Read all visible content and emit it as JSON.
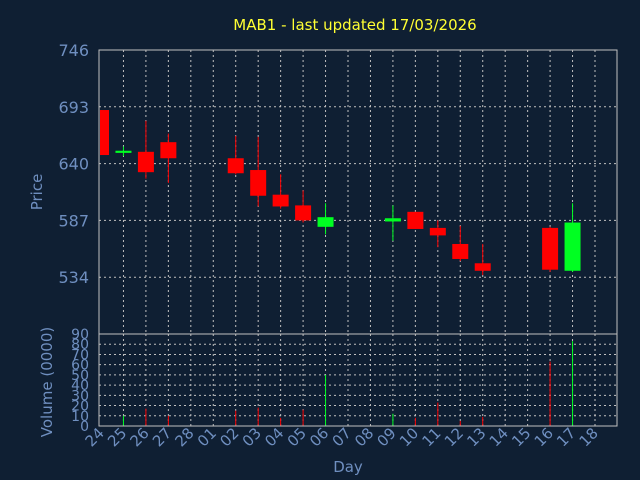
{
  "colors": {
    "background": "#0f1f33",
    "title": "#ffff33",
    "axis_text": "#6f8fc0",
    "grid": "#c0c0c0",
    "up": "#00ff22",
    "down": "#ff0000"
  },
  "chart_data": {
    "type": "candlestick",
    "title": "MAB1 - last updated 17/03/2026",
    "price_panel": {
      "ylabel": "Price",
      "yticks": [
        "746",
        "693",
        "640",
        "587",
        "534"
      ],
      "ylim": [
        481,
        746
      ],
      "grid": true
    },
    "volume_panel": {
      "ylabel": "Volume (0000)",
      "yticks": [
        "0",
        "10",
        "20",
        "30",
        "40",
        "50",
        "60",
        "70",
        "80",
        "90"
      ],
      "ylim": [
        0,
        90
      ],
      "grid": true
    },
    "xlabel": "Day",
    "x_ticks": [
      "24",
      "25",
      "26",
      "27",
      "28",
      "01",
      "02",
      "03",
      "04",
      "05",
      "06",
      "07",
      "08",
      "09",
      "10",
      "11",
      "12",
      "13",
      "14",
      "15",
      "16",
      "17",
      "18"
    ],
    "candles": [
      {
        "day": "24",
        "open": 690,
        "close": 648,
        "high": 690,
        "low": 648,
        "volume": 0
      },
      {
        "day": "25",
        "open": 650,
        "close": 652,
        "high": 656,
        "low": 647,
        "volume": 10
      },
      {
        "day": "26",
        "open": 651,
        "close": 632,
        "high": 680,
        "low": 626,
        "volume": 17
      },
      {
        "day": "27",
        "open": 660,
        "close": 645,
        "high": 668,
        "low": 622,
        "volume": 10
      },
      {
        "day": "02",
        "open": 645,
        "close": 631,
        "high": 666,
        "low": 630,
        "volume": 15
      },
      {
        "day": "03",
        "open": 634,
        "close": 610,
        "high": 665,
        "low": 600,
        "volume": 18
      },
      {
        "day": "04",
        "open": 611,
        "close": 600,
        "high": 630,
        "low": 598,
        "volume": 8
      },
      {
        "day": "05",
        "open": 601,
        "close": 587,
        "high": 615,
        "low": 585,
        "volume": 16
      },
      {
        "day": "06",
        "open": 581,
        "close": 590,
        "high": 603,
        "low": 574,
        "volume": 50
      },
      {
        "day": "09",
        "open": 586,
        "close": 589,
        "high": 601,
        "low": 568,
        "volume": 12
      },
      {
        "day": "10",
        "open": 595,
        "close": 579,
        "high": 595,
        "low": 579,
        "volume": 8
      },
      {
        "day": "11",
        "open": 580,
        "close": 573,
        "high": 587,
        "low": 562,
        "volume": 23
      },
      {
        "day": "12",
        "open": 565,
        "close": 551,
        "high": 582,
        "low": 549,
        "volume": 5
      },
      {
        "day": "13",
        "open": 547,
        "close": 540,
        "high": 565,
        "low": 536,
        "volume": 9
      },
      {
        "day": "16",
        "open": 580,
        "close": 541,
        "high": 581,
        "low": 539,
        "volume": 63
      },
      {
        "day": "17",
        "open": 540,
        "close": 585,
        "high": 603,
        "low": 539,
        "volume": 83
      }
    ]
  }
}
